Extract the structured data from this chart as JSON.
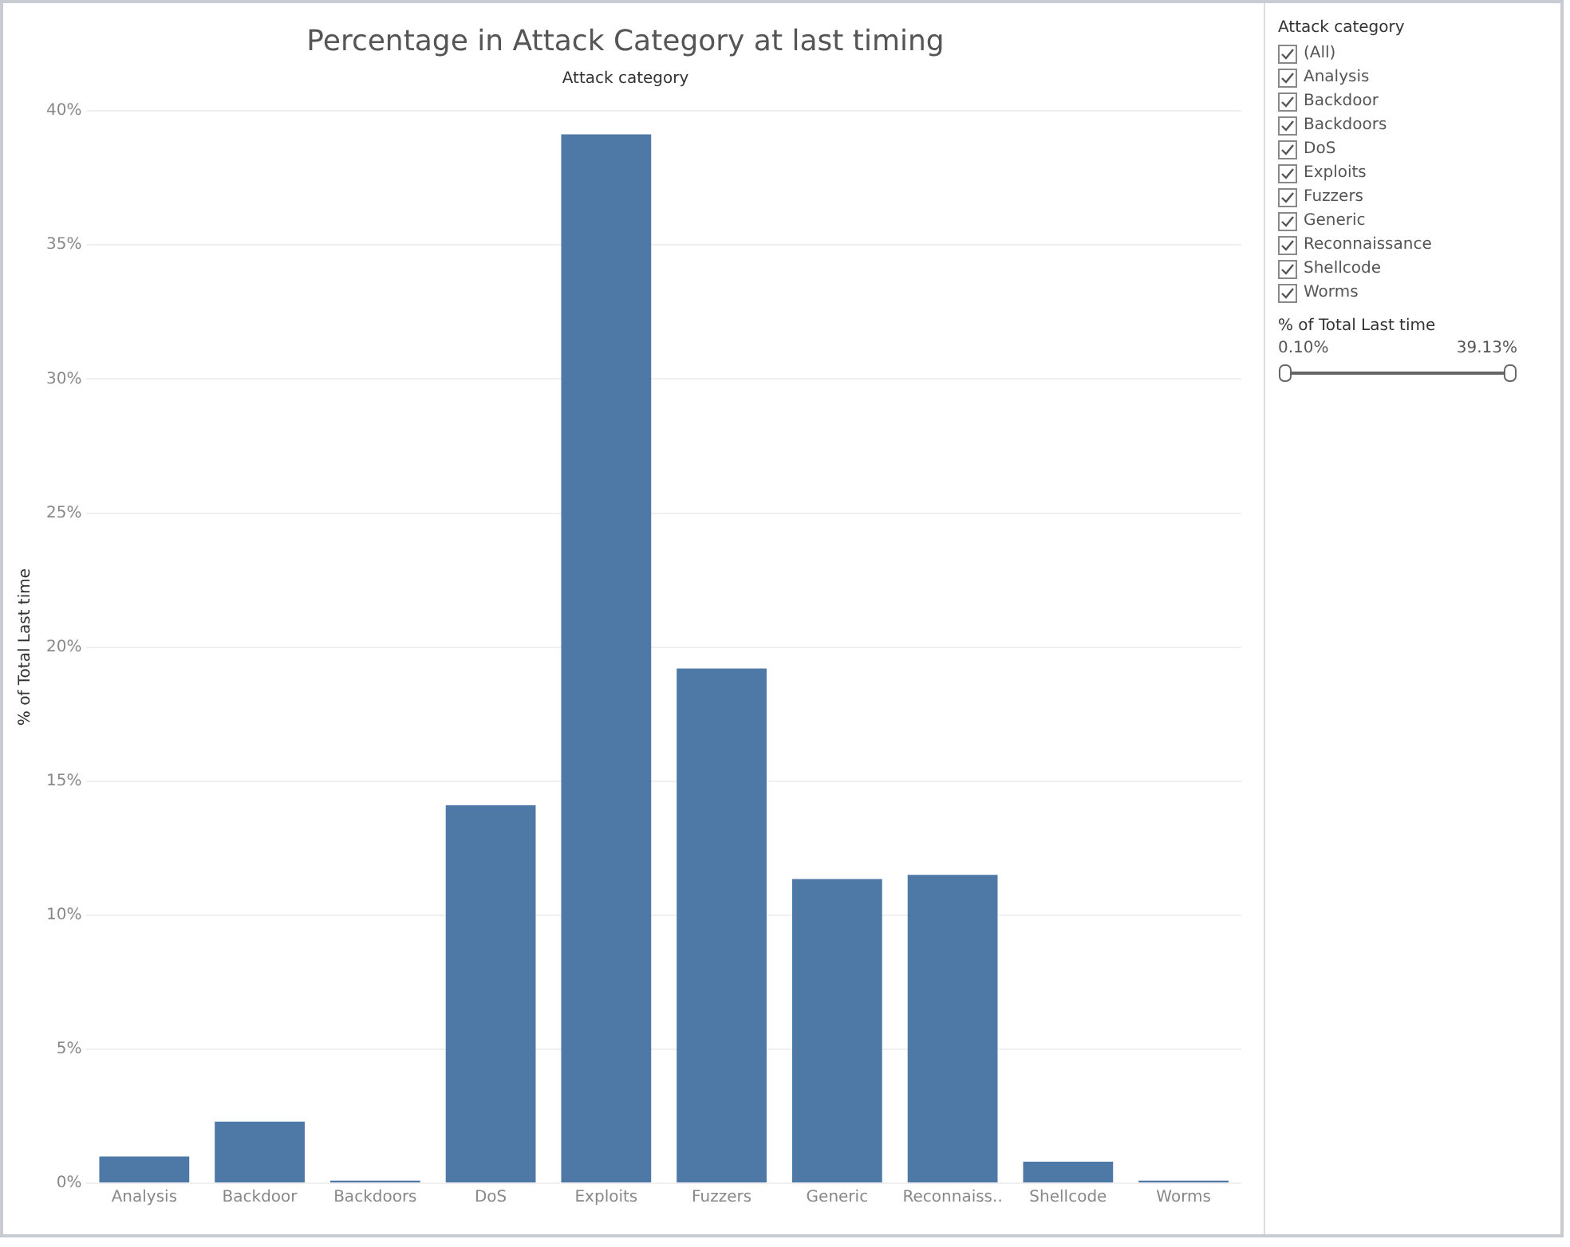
{
  "chart_data": [
    {
      "type": "bar",
      "title": "Percentage in Attack Category at last timing",
      "subtitle": "Attack category",
      "ylabel": "% of Total Last time",
      "categories": [
        "Analysis",
        "Backdoor",
        "Backdoors",
        "DoS",
        "Exploits",
        "Fuzzers",
        "Generic",
        "Reconnaiss..",
        "Shellcode",
        "Worms"
      ],
      "values": [
        1.0,
        2.3,
        0.1,
        14.1,
        39.13,
        19.2,
        11.35,
        11.5,
        0.8,
        0.1
      ],
      "color": "#4e79a7",
      "ylim": [
        0,
        40
      ],
      "yticks": [
        {
          "value": 0,
          "label": "0%"
        },
        {
          "value": 5,
          "label": "5%"
        },
        {
          "value": 10,
          "label": "10%"
        },
        {
          "value": 15,
          "label": "15%"
        },
        {
          "value": 20,
          "label": "20%"
        },
        {
          "value": 25,
          "label": "25%"
        },
        {
          "value": 30,
          "label": "30%"
        },
        {
          "value": 35,
          "label": "35%"
        },
        {
          "value": 40,
          "label": "40%"
        }
      ],
      "grid": "y",
      "legend": false
    },
    {
      "type": "other",
      "title": "Attack category",
      "annotations": [
        "(All)",
        "Analysis",
        "Backdoor",
        "Backdoors",
        "DoS",
        "Exploits",
        "Fuzzers",
        "Generic",
        "Reconnaissance",
        "Shellcode",
        "Worms"
      ]
    },
    {
      "type": "other",
      "title": "% of Total Last time",
      "annotations": [
        "0.10%",
        "39.13%"
      ]
    }
  ]
}
